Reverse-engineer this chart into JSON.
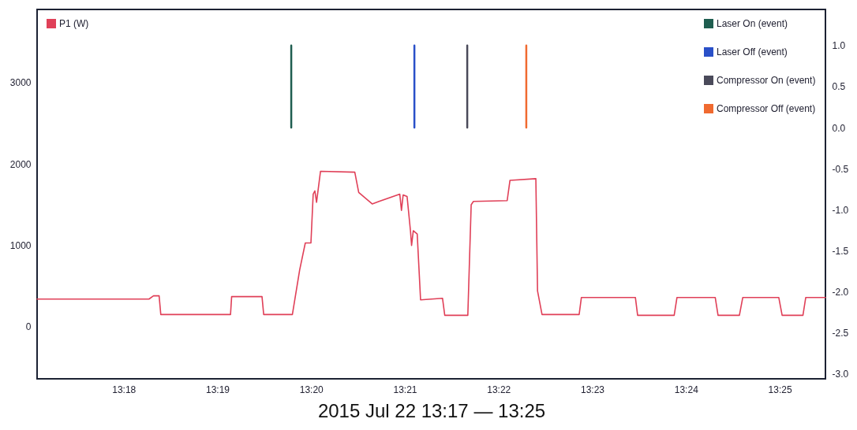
{
  "chart_data": {
    "type": "line",
    "xlabel": "2015 Jul 22 13:17 — 13:25",
    "xlim": [
      13.2846,
      13.4248
    ],
    "xticks": [
      {
        "value": 13.3,
        "label": "13:18"
      },
      {
        "value": 13.316667,
        "label": "13:19"
      },
      {
        "value": 13.333333,
        "label": "13:20"
      },
      {
        "value": 13.35,
        "label": "13:21"
      },
      {
        "value": 13.366667,
        "label": "13:22"
      },
      {
        "value": 13.383333,
        "label": "13:23"
      },
      {
        "value": 13.4,
        "label": "13:24"
      },
      {
        "value": 13.416667,
        "label": "13:25"
      }
    ],
    "ylim": [
      -640,
      3900
    ],
    "yticks": [
      0,
      1000,
      2000,
      3000
    ],
    "y2lim": [
      -3.06,
      1.44
    ],
    "y2ticks": [
      {
        "value": 1,
        "label": "1.0"
      },
      {
        "value": 0.5,
        "label": "0.5"
      },
      {
        "value": 0,
        "label": "0.0"
      },
      {
        "value": -0.5,
        "label": "-0.5"
      },
      {
        "value": -1,
        "label": "-1.0"
      },
      {
        "value": -1.5,
        "label": "-1.5"
      },
      {
        "value": -2,
        "label": "-2.0"
      },
      {
        "value": -2.5,
        "label": "-2.5"
      },
      {
        "value": -3,
        "label": "-3.0"
      }
    ],
    "legend": "top right",
    "grid": false,
    "marker": "none",
    "line_style": "solid",
    "series": [
      {
        "name": "P1 (W)",
        "color": "#e04058",
        "axis": "y",
        "x": [
          13.2846,
          13.3045,
          13.3053,
          13.3063,
          13.3066,
          13.319,
          13.3192,
          13.3246,
          13.3249,
          13.3298,
          13.33,
          13.3313,
          13.3323,
          13.3333,
          13.3337,
          13.334,
          13.3343,
          13.335,
          13.3411,
          13.3418,
          13.3442,
          13.3454,
          13.3491,
          13.3494,
          13.3497,
          13.3504,
          13.351,
          13.3512,
          13.3515,
          13.3522,
          13.3528,
          13.3567,
          13.3571,
          13.3612,
          13.3618,
          13.3622,
          13.3682,
          13.3687,
          13.3733,
          13.3736,
          13.3744,
          13.381,
          13.3814,
          13.391,
          13.3914,
          13.3979,
          13.3984,
          13.4052,
          13.4057,
          13.4095,
          13.4101,
          13.4165,
          13.4171,
          13.4208,
          13.4213,
          13.4248
        ],
        "values": [
          340,
          340,
          380,
          380,
          150,
          150,
          370,
          370,
          150,
          150,
          150,
          700,
          1030,
          1030,
          1630,
          1670,
          1530,
          1910,
          1900,
          1650,
          1510,
          1540,
          1630,
          1430,
          1620,
          1600,
          1180,
          1000,
          1180,
          1140,
          330,
          350,
          140,
          140,
          1500,
          1540,
          1550,
          1800,
          1820,
          440,
          150,
          150,
          360,
          360,
          140,
          140,
          360,
          360,
          140,
          140,
          360,
          360,
          140,
          140,
          360,
          360
        ]
      },
      {
        "name": "Laser On (event)",
        "color": "#1f5e50",
        "axis": "y2",
        "x": [
          13.3298,
          13.3298
        ],
        "values": [
          0,
          1
        ]
      },
      {
        "name": "Laser Off (event)",
        "color": "#2a50c8",
        "axis": "y2",
        "x": [
          13.3517,
          13.3517
        ],
        "values": [
          0,
          1
        ]
      },
      {
        "name": "Compressor On (event)",
        "color": "#4a4a5a",
        "axis": "y2",
        "x": [
          13.3611,
          13.3611
        ],
        "values": [
          0,
          1
        ]
      },
      {
        "name": "Compressor Off (event)",
        "color": "#f06a30",
        "axis": "y2",
        "x": [
          13.3716,
          13.3716
        ],
        "values": [
          0,
          1
        ]
      }
    ]
  }
}
